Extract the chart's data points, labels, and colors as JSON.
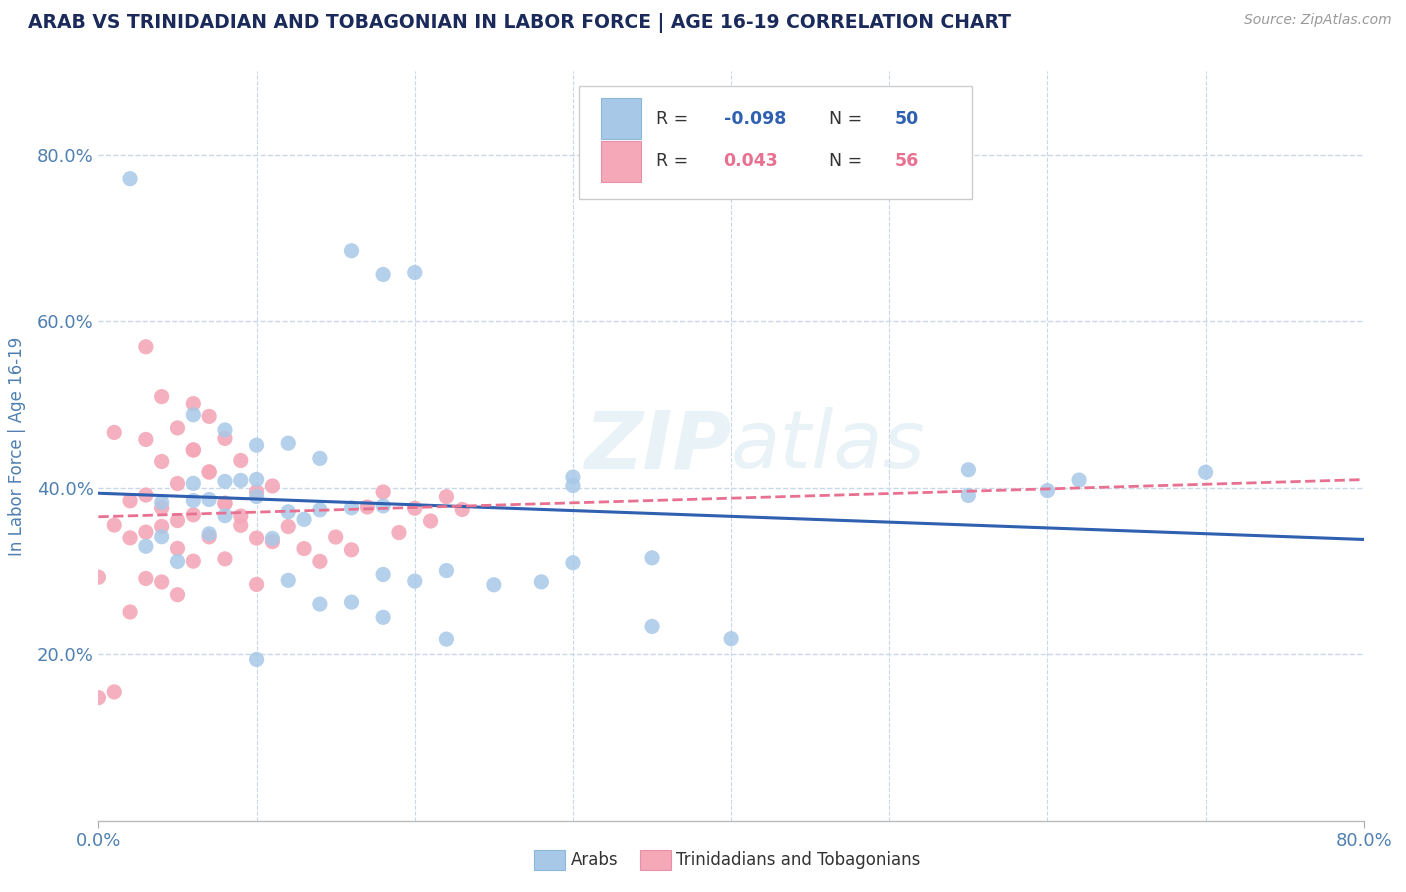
{
  "title": "ARAB VS TRINIDADIAN AND TOBAGONIAN IN LABOR FORCE | AGE 16-19 CORRELATION CHART",
  "source": "Source: ZipAtlas.com",
  "ylabel": "In Labor Force | Age 16-19",
  "watermark": "ZIPatlas",
  "arab_color": "#a8c8e8",
  "tnt_color": "#f4a8b8",
  "arab_line_color": "#3060b0",
  "tnt_line_color": "#e87090",
  "background_color": "#ffffff",
  "grid_color": "#c8d8e8",
  "title_color": "#1a2a5a",
  "axis_color": "#5080b0",
  "arab_x": [
    0.02,
    0.16,
    0.18,
    0.2,
    0.06,
    0.08,
    0.1,
    0.12,
    0.14,
    0.06,
    0.08,
    0.1,
    0.04,
    0.06,
    0.08,
    0.1,
    0.12,
    0.14,
    0.16,
    0.18,
    0.04,
    0.07,
    0.09,
    0.11,
    0.13,
    0.03,
    0.05,
    0.07,
    0.12,
    0.3,
    0.3,
    0.55,
    0.62,
    0.55,
    0.6,
    0.3,
    0.35,
    0.2,
    0.25,
    0.18,
    0.22,
    0.28,
    0.14,
    0.16,
    0.7,
    0.35,
    0.4,
    0.22,
    0.18,
    0.1
  ],
  "arab_y": [
    0.78,
    0.68,
    0.65,
    0.65,
    0.5,
    0.48,
    0.46,
    0.46,
    0.44,
    0.42,
    0.42,
    0.42,
    0.4,
    0.4,
    0.38,
    0.4,
    0.38,
    0.38,
    0.38,
    0.38,
    0.36,
    0.4,
    0.42,
    0.35,
    0.37,
    0.35,
    0.33,
    0.36,
    0.3,
    0.4,
    0.39,
    0.38,
    0.36,
    0.35,
    0.35,
    0.3,
    0.3,
    0.29,
    0.28,
    0.3,
    0.3,
    0.28,
    0.27,
    0.27,
    0.36,
    0.22,
    0.2,
    0.22,
    0.25,
    0.21
  ],
  "tnt_x": [
    0.0,
    0.0,
    0.01,
    0.01,
    0.01,
    0.02,
    0.02,
    0.02,
    0.03,
    0.03,
    0.03,
    0.03,
    0.04,
    0.04,
    0.04,
    0.04,
    0.05,
    0.05,
    0.05,
    0.05,
    0.06,
    0.06,
    0.06,
    0.06,
    0.07,
    0.07,
    0.07,
    0.08,
    0.08,
    0.08,
    0.09,
    0.09,
    0.1,
    0.1,
    0.1,
    0.11,
    0.11,
    0.12,
    0.13,
    0.14,
    0.15,
    0.16,
    0.17,
    0.18,
    0.19,
    0.2,
    0.21,
    0.22,
    0.23,
    0.03,
    0.04,
    0.05,
    0.06,
    0.07,
    0.08,
    0.09
  ],
  "tnt_y": [
    0.35,
    0.22,
    0.5,
    0.4,
    0.22,
    0.42,
    0.38,
    0.3,
    0.48,
    0.42,
    0.38,
    0.33,
    0.45,
    0.4,
    0.38,
    0.32,
    0.42,
    0.38,
    0.35,
    0.3,
    0.5,
    0.45,
    0.38,
    0.33,
    0.48,
    0.42,
    0.35,
    0.45,
    0.38,
    0.32,
    0.42,
    0.36,
    0.38,
    0.33,
    0.28,
    0.38,
    0.32,
    0.33,
    0.3,
    0.28,
    0.3,
    0.28,
    0.32,
    0.33,
    0.28,
    0.3,
    0.28,
    0.3,
    0.28,
    0.58,
    0.52,
    0.48,
    0.45,
    0.42,
    0.38,
    0.35
  ],
  "xlim": [
    0.0,
    0.8
  ],
  "ylim": [
    0.0,
    0.9
  ],
  "xtick_vals": [
    0.0,
    0.8
  ],
  "xtick_labels": [
    "0.0%",
    "80.0%"
  ],
  "ytick_vals": [
    0.2,
    0.4,
    0.6,
    0.8
  ],
  "ytick_labels": [
    "20.0%",
    "40.0%",
    "60.0%",
    "80.0%"
  ],
  "hgrid_vals": [
    0.2,
    0.4,
    0.6,
    0.8
  ],
  "vgrid_vals": [
    0.1,
    0.2,
    0.3,
    0.4,
    0.5,
    0.6,
    0.7
  ],
  "legend_R_arab": "-0.098",
  "legend_N_arab": "50",
  "legend_R_tnt": "0.043",
  "legend_N_tnt": "56",
  "legend_label_arab": "Arabs",
  "legend_label_tnt": "Trinidadians and Tobagonians"
}
